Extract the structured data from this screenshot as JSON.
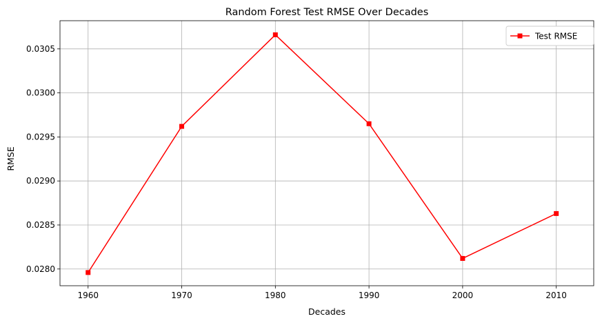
{
  "chart_data": {
    "type": "line",
    "title": "Random Forest Test RMSE Over Decades",
    "xlabel": "Decades",
    "ylabel": "RMSE",
    "x": [
      1960,
      1970,
      1980,
      1990,
      2000,
      2010
    ],
    "xticks": [
      "1960",
      "1970",
      "1980",
      "1990",
      "2000",
      "2010"
    ],
    "xlim": [
      1957,
      2014
    ],
    "ylim": [
      0.02781,
      0.03082
    ],
    "yticks": [
      "0.0280",
      "0.0285",
      "0.0290",
      "0.0295",
      "0.0300",
      "0.0305"
    ],
    "ytick_values": [
      0.028,
      0.0285,
      0.029,
      0.0295,
      0.03,
      0.0305
    ],
    "series": [
      {
        "name": "Test RMSE",
        "values": [
          0.02796,
          0.02962,
          0.03066,
          0.02965,
          0.02812,
          0.02863
        ],
        "color": "#ff0000",
        "marker": "square"
      }
    ],
    "grid": true,
    "legend_position": "top-right"
  }
}
